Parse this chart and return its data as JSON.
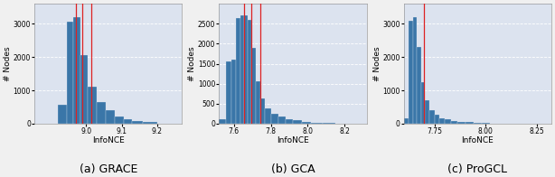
{
  "subplots": [
    {
      "label": "(a) GRACE",
      "xlabel": "InfoNCE",
      "ylabel": "# Nodes",
      "xlim": [
        8.855,
        9.27
      ],
      "ylim": [
        0,
        3600
      ],
      "yticks": [
        0,
        1000,
        2000,
        3000
      ],
      "xticks": [
        9.0,
        9.1,
        9.2
      ],
      "red_lines": [
        8.972,
        8.99,
        9.015
      ],
      "hist_bin_edges": [
        8.855,
        8.875,
        8.9,
        8.92,
        8.945,
        8.965,
        8.985,
        9.005,
        9.03,
        9.055,
        9.08,
        9.105,
        9.13,
        9.16,
        9.2,
        9.24,
        9.27
      ],
      "hist_counts": [
        0,
        0,
        0,
        580,
        3050,
        3200,
        2050,
        1100,
        650,
        400,
        220,
        130,
        80,
        40,
        10,
        5
      ]
    },
    {
      "label": "(b) GCA",
      "xlabel": "InfoNCE",
      "ylabel": "# Nodes",
      "xlim": [
        7.52,
        8.32
      ],
      "ylim": [
        0,
        3000
      ],
      "yticks": [
        0,
        500,
        1000,
        1500,
        2000,
        2500
      ],
      "xticks": [
        7.6,
        7.8,
        8.0,
        8.2
      ],
      "red_lines": [
        7.655,
        7.695,
        7.745
      ],
      "hist_bin_edges": [
        7.52,
        7.555,
        7.585,
        7.61,
        7.635,
        7.655,
        7.675,
        7.695,
        7.72,
        7.745,
        7.77,
        7.8,
        7.84,
        7.88,
        7.92,
        7.97,
        8.02,
        8.08,
        8.15,
        8.25,
        8.32
      ],
      "hist_counts": [
        120,
        1550,
        1600,
        2650,
        2700,
        2700,
        2600,
        1900,
        1050,
        620,
        380,
        250,
        170,
        120,
        80,
        50,
        25,
        15,
        8,
        3
      ]
    },
    {
      "label": "(c) ProGCL",
      "xlabel": "InfoNCE",
      "ylabel": "# Nodes",
      "xlim": [
        7.6,
        8.32
      ],
      "ylim": [
        0,
        3600
      ],
      "yticks": [
        0,
        1000,
        2000,
        3000
      ],
      "xticks": [
        7.75,
        8.0,
        8.25
      ],
      "red_lines": [
        7.7
      ],
      "hist_bin_edges": [
        7.6,
        7.625,
        7.645,
        7.665,
        7.685,
        7.705,
        7.725,
        7.75,
        7.775,
        7.8,
        7.83,
        7.86,
        7.9,
        7.94,
        7.98,
        8.02,
        8.07,
        8.15,
        8.25,
        8.32
      ],
      "hist_counts": [
        160,
        3100,
        3200,
        2300,
        1250,
        700,
        400,
        260,
        160,
        120,
        80,
        60,
        40,
        25,
        15,
        10,
        6,
        4,
        2
      ]
    }
  ],
  "bar_color": "#3a76a8",
  "background_color": "#dce3ef",
  "red_line_color": "#dd2222",
  "grid_color": "white",
  "fig_facecolor": "#f0f0f0",
  "caption_fontsize": 9,
  "axis_label_fontsize": 6.5,
  "tick_fontsize": 5.5
}
